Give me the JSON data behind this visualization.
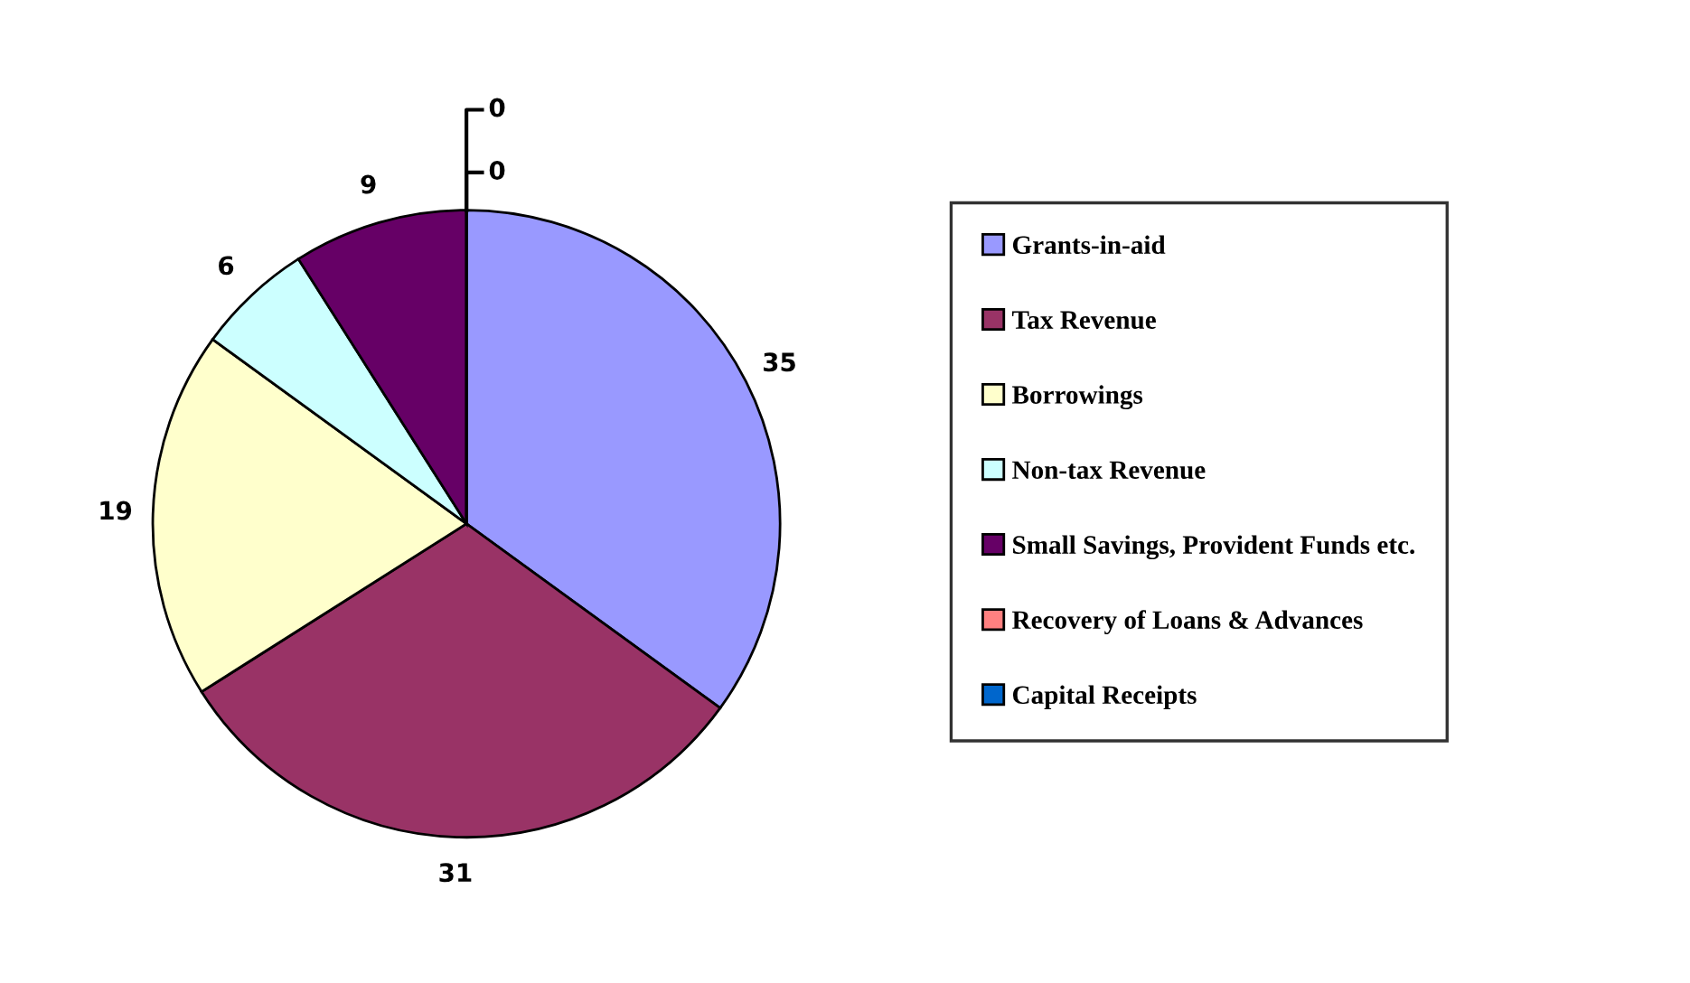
{
  "chart_data": {
    "type": "pie",
    "categories": [
      "Grants-in-aid",
      "Tax Revenue",
      "Borrowings",
      "Non-tax Revenue",
      "Small Savings, Provident Funds etc.",
      "Recovery of Loans & Advances",
      "Capital Receipts"
    ],
    "values": [
      35,
      31,
      19,
      6,
      9,
      0,
      0
    ],
    "colors": [
      "#9999ff",
      "#993366",
      "#ffffcc",
      "#ccffff",
      "#660066",
      "#ff8080",
      "#0066cc"
    ],
    "value_labels": [
      "35",
      "31",
      "19",
      "6",
      "9",
      "0",
      "0"
    ],
    "legend": "right"
  }
}
